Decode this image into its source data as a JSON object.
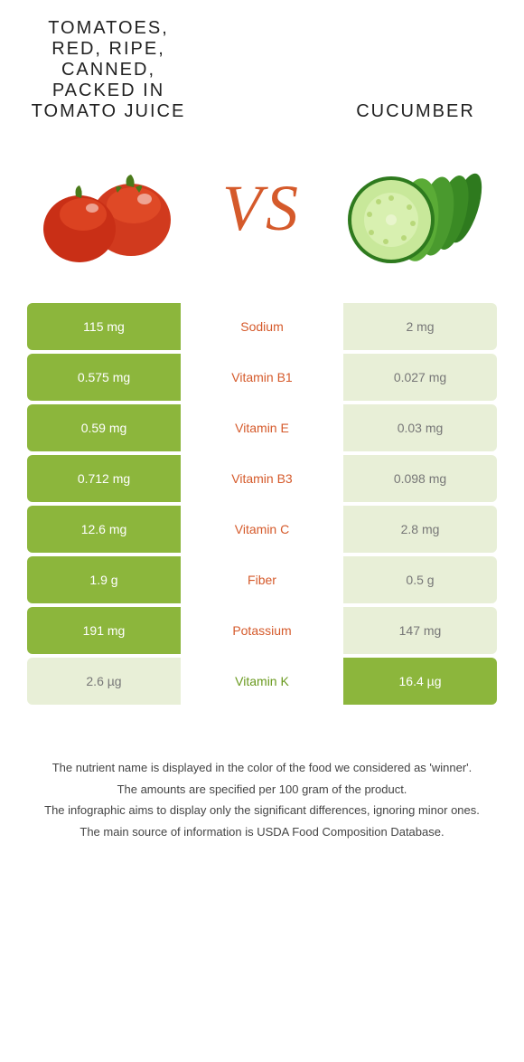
{
  "colors": {
    "green": "#8cb63c",
    "lightGreen": "#e8efd7",
    "orangeText": "#d55a2b",
    "greenText": "#6a9a1f",
    "whiteText": "#ffffff"
  },
  "leftTitle": "TOMATOES, RED, RIPE, CANNED, PACKED IN TOMATO JUICE",
  "rightTitle": "CUCUMBER",
  "vs": "VS",
  "rows": [
    {
      "left": "115 mg",
      "name": "Sodium",
      "right": "2 mg",
      "leftWin": true,
      "rightWin": false
    },
    {
      "left": "0.575 mg",
      "name": "Vitamin B1",
      "right": "0.027 mg",
      "leftWin": true,
      "rightWin": false
    },
    {
      "left": "0.59 mg",
      "name": "Vitamin E",
      "right": "0.03 mg",
      "leftWin": true,
      "rightWin": false
    },
    {
      "left": "0.712 mg",
      "name": "Vitamin B3",
      "right": "0.098 mg",
      "leftWin": true,
      "rightWin": false
    },
    {
      "left": "12.6 mg",
      "name": "Vitamin C",
      "right": "2.8 mg",
      "leftWin": true,
      "rightWin": false
    },
    {
      "left": "1.9 g",
      "name": "Fiber",
      "right": "0.5 g",
      "leftWin": true,
      "rightWin": false
    },
    {
      "left": "191 mg",
      "name": "Potassium",
      "right": "147 mg",
      "leftWin": true,
      "rightWin": false
    },
    {
      "left": "2.6 µg",
      "name": "Vitamin K",
      "right": "16.4 µg",
      "leftWin": false,
      "rightWin": true
    }
  ],
  "footnotes": [
    "The nutrient name is displayed in the color of the food we considered as 'winner'.",
    "The amounts are specified per 100 gram of the product.",
    "The infographic aims to display only the significant differences, ignoring minor ones.",
    "The main source of information is USDA Food Composition Database."
  ]
}
